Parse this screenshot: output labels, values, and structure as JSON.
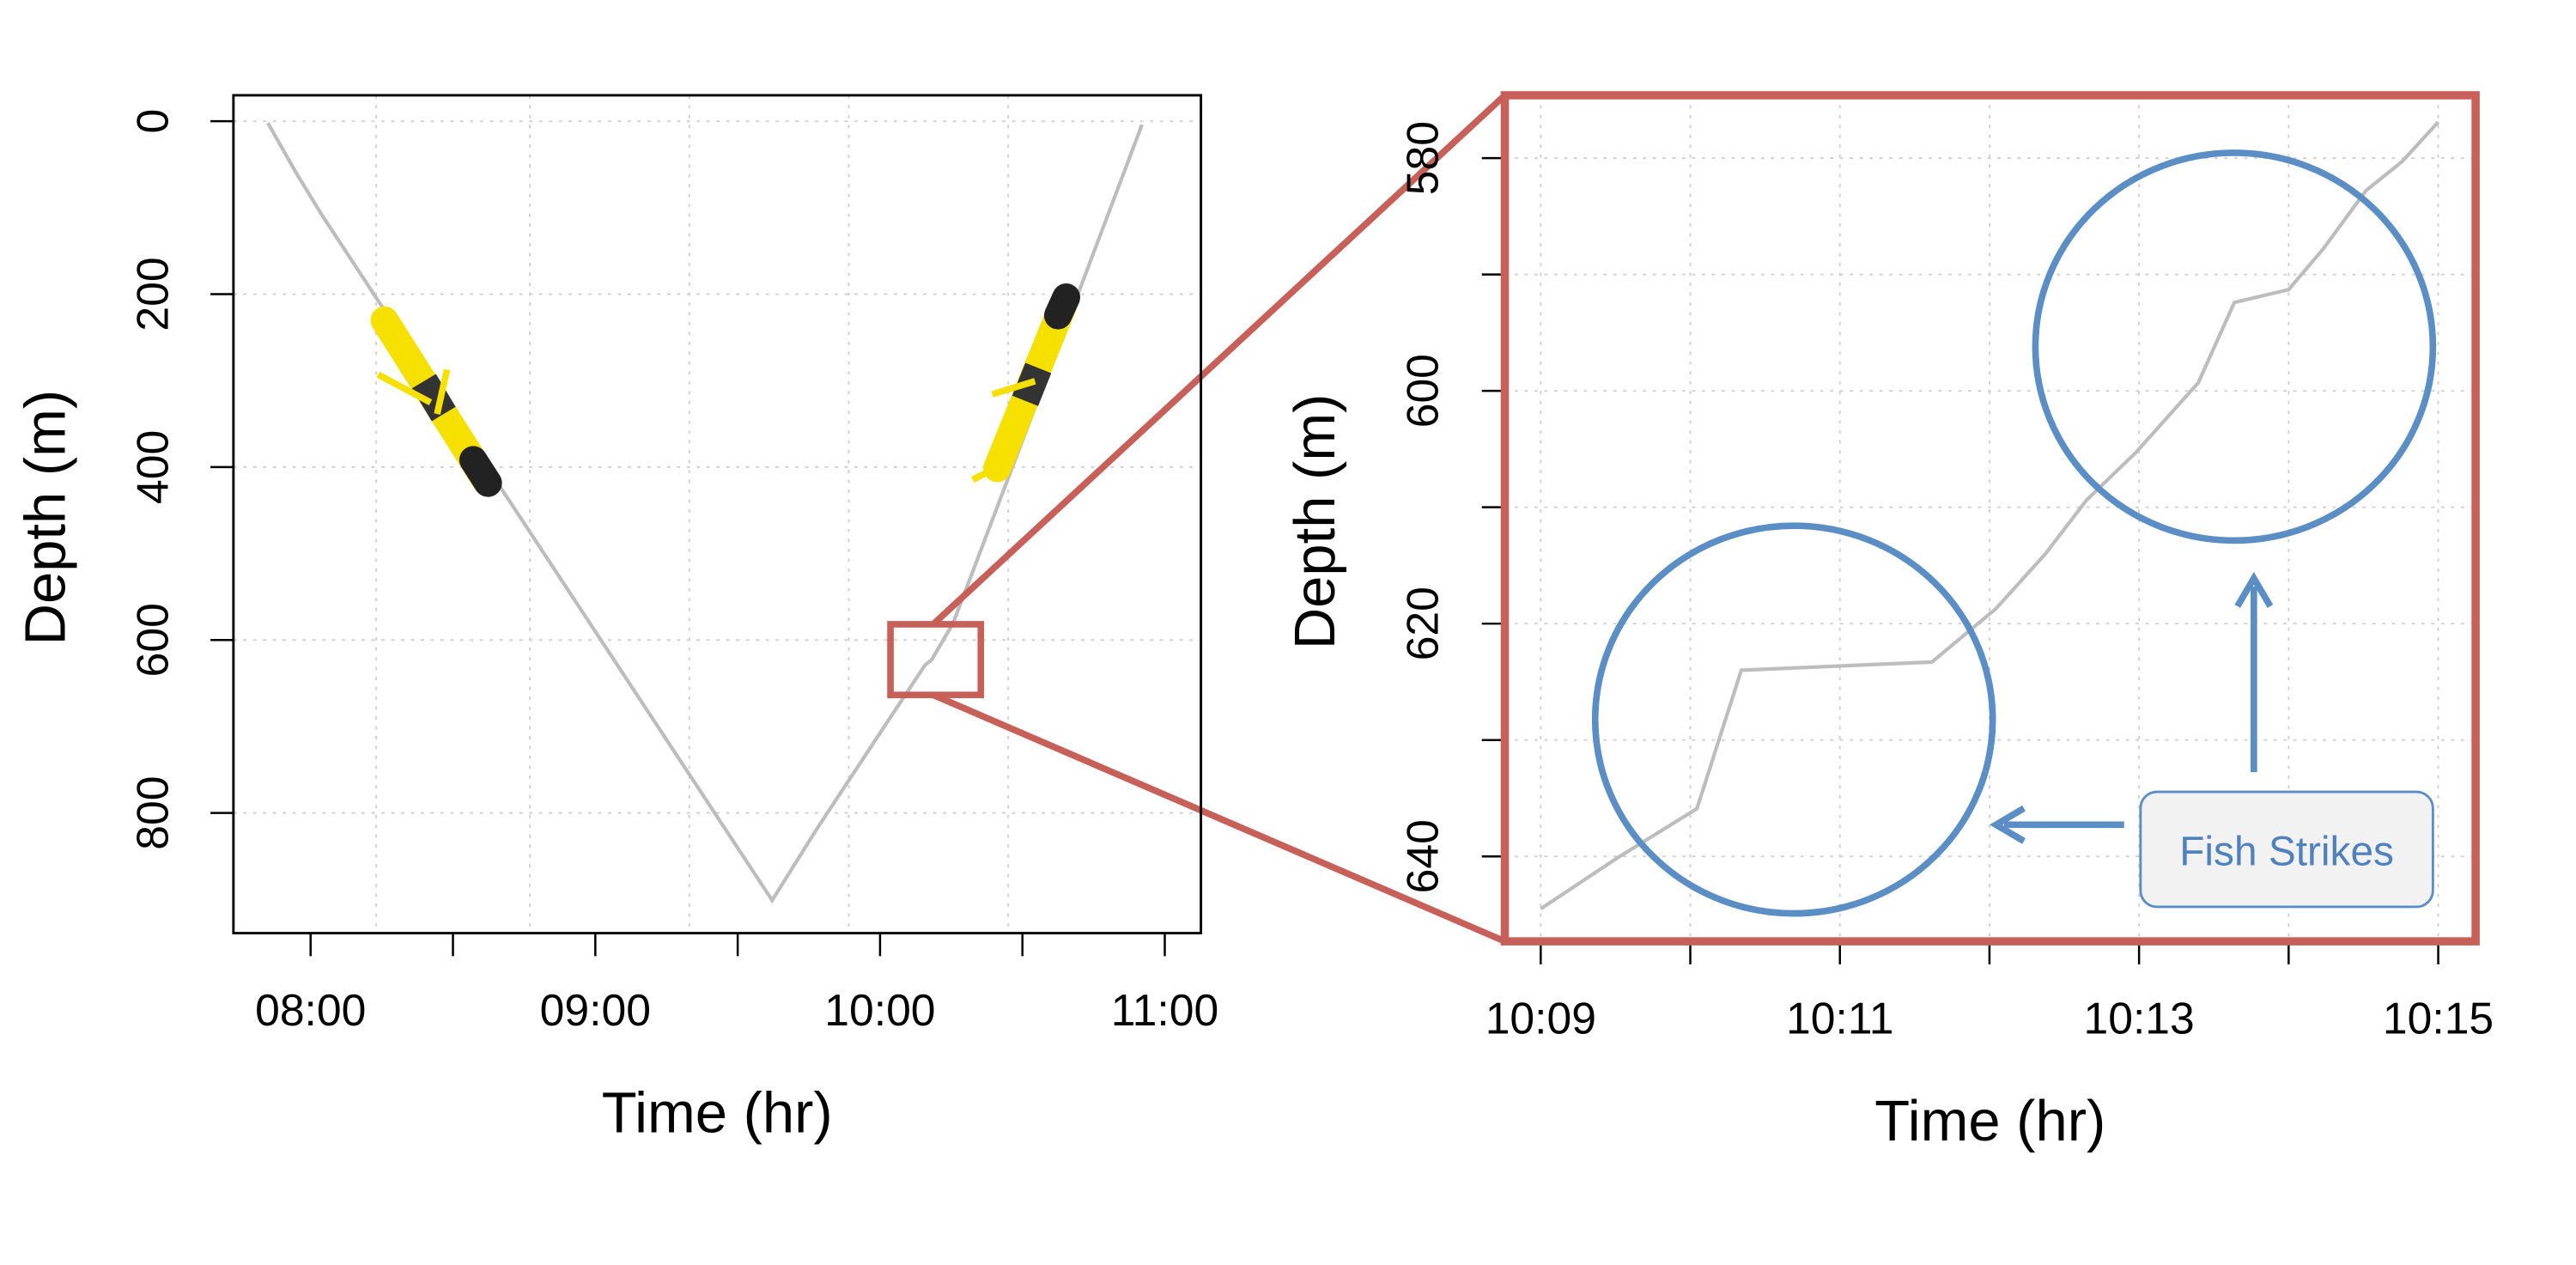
{
  "chart_data": [
    {
      "type": "line",
      "x_label": "Time (hr)",
      "y_label": "Depth (m)",
      "x": [
        7.85,
        7.948,
        8.035,
        8.64,
        9.621,
        9.777,
        10.025,
        10.158,
        10.181,
        10.256,
        10.602,
        10.92
      ],
      "series": [
        {
          "color": "#bdbdbd",
          "values": [
            2,
            59,
            106,
            410,
            901,
            819,
            695,
            629,
            623,
            581,
            281,
            4
          ]
        }
      ],
      "xlim": [
        7.729,
        11.127
      ],
      "xticks": [
        {
          "value": 8,
          "label": "08:00"
        },
        {
          "value": 9,
          "label": "09:00"
        },
        {
          "value": 10,
          "label": "10:00"
        },
        {
          "value": 11,
          "label": "11:00"
        }
      ],
      "xminorticks": [
        8.5,
        9.5,
        10.5
      ],
      "xgrid": [
        8.23,
        8.77,
        9.33,
        9.89,
        10.45
      ],
      "ylim": [
        -30,
        939
      ],
      "y_inverted": true,
      "yticks": [
        0,
        200,
        400,
        600,
        800
      ],
      "yminorticks": [],
      "grid": true,
      "frame_color": "#000000"
    },
    {
      "type": "line",
      "x_label": "Time (hr)",
      "y_label": "Depth (m)",
      "x": [
        9.0,
        9.516,
        10.044,
        10.341,
        11.615,
        12.044,
        12.374,
        12.648,
        12.978,
        13.396,
        13.637,
        14.0,
        14.231,
        14.516,
        14.758,
        15.0
      ],
      "series": [
        {
          "color": "#bdbdbd",
          "values": [
            644.5,
            640.1,
            635.9,
            624.0,
            623.3,
            618.7,
            614.0,
            609.4,
            605.3,
            599.3,
            592.4,
            591.3,
            587.8,
            582.8,
            580.3,
            576.9
          ]
        }
      ],
      "xlim": [
        8.76,
        15.25
      ],
      "xticks": [
        {
          "value": 9,
          "label": "10:09"
        },
        {
          "value": 11,
          "label": "10:11"
        },
        {
          "value": 13,
          "label": "10:13"
        },
        {
          "value": 15,
          "label": "10:15"
        }
      ],
      "xminorticks": [
        10,
        12,
        14
      ],
      "ylim": [
        574.6,
        647.3
      ],
      "y_inverted": true,
      "yticks": [
        580,
        600,
        620,
        640
      ],
      "yminorticks": [
        590,
        610,
        630
      ],
      "grid": true,
      "frame_color": "#c8605a",
      "annotation": "Fish Strikes"
    }
  ]
}
